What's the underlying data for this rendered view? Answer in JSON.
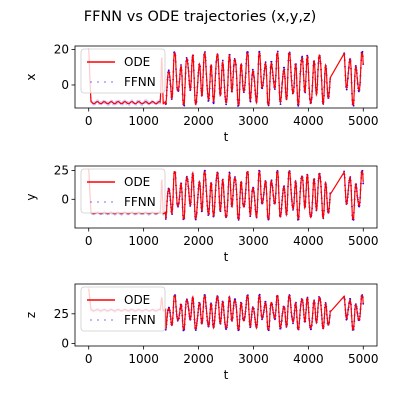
{
  "figure_title": "FFNN vs ODE trajectories (x,y,z)",
  "colors": {
    "ode": "#ff0000",
    "ffnn": "#1f00ff",
    "ffnn_light": "#c8c8ff",
    "axes": "#000000"
  },
  "chart_data": [
    {
      "type": "line",
      "id": "x",
      "title": "",
      "xlabel": "t",
      "ylabel": "x",
      "xlim": [
        -250,
        5250
      ],
      "ylim": [
        -13,
        22
      ],
      "xticks": [
        0,
        1000,
        2000,
        3000,
        4000,
        5000
      ],
      "yticks": [
        0,
        20
      ],
      "legend_position": "upper-left",
      "series": [
        {
          "name": "ODE",
          "style": "solid line",
          "color": "#ff0000"
        },
        {
          "name": "FFNN",
          "style": "dots",
          "color": "#1f00ff"
        }
      ],
      "transient": {
        "t_end": 1400,
        "spike_peak": 20,
        "settle_value": -10,
        "spike_t": 0,
        "late_spike_t": 1330,
        "late_spike_peak": 18
      },
      "oscillation": {
        "t_start": 1400,
        "t_end": 5000,
        "min": -11,
        "max": 18,
        "period": 110
      },
      "gaps": [
        [
          4400,
          4650
        ]
      ]
    },
    {
      "type": "line",
      "id": "y",
      "title": "",
      "xlabel": "t",
      "ylabel": "y",
      "xlim": [
        -250,
        5250
      ],
      "ylim": [
        -25,
        29
      ],
      "xticks": [
        0,
        1000,
        2000,
        3000,
        4000,
        5000
      ],
      "yticks": [
        0,
        25
      ],
      "legend_position": "upper-left",
      "series": [
        {
          "name": "ODE",
          "style": "solid line",
          "color": "#ff0000"
        },
        {
          "name": "FFNN",
          "style": "dots",
          "color": "#1f00ff"
        }
      ],
      "transient": {
        "t_end": 1400,
        "spike_peak": 26,
        "settle_value": -12,
        "spike_t": 0,
        "late_spike_t": 1330,
        "late_spike_peak": 20
      },
      "oscillation": {
        "t_start": 1400,
        "t_end": 5000,
        "min": -17,
        "max": 24,
        "period": 110
      },
      "gaps": [
        [
          4400,
          4650
        ]
      ]
    },
    {
      "type": "line",
      "id": "z",
      "title": "",
      "xlabel": "t",
      "ylabel": "z",
      "xlim": [
        -250,
        5250
      ],
      "ylim": [
        -2,
        50
      ],
      "xticks": [
        0,
        1000,
        2000,
        3000,
        4000,
        5000
      ],
      "yticks": [
        0,
        25
      ],
      "legend_position": "upper-left",
      "series": [
        {
          "name": "ODE",
          "style": "solid line",
          "color": "#ff0000"
        },
        {
          "name": "FFNN",
          "style": "dots",
          "color": "#1f00ff"
        }
      ],
      "transient": {
        "t_end": 1400,
        "spike_peak": 46,
        "settle_value": 28,
        "spike_t": 0,
        "late_spike_t": 1330,
        "late_spike_peak": 40
      },
      "oscillation": {
        "t_start": 1400,
        "t_end": 5000,
        "min": 12,
        "max": 40,
        "period": 110
      },
      "gaps": [
        [
          4400,
          4650
        ]
      ]
    }
  ]
}
